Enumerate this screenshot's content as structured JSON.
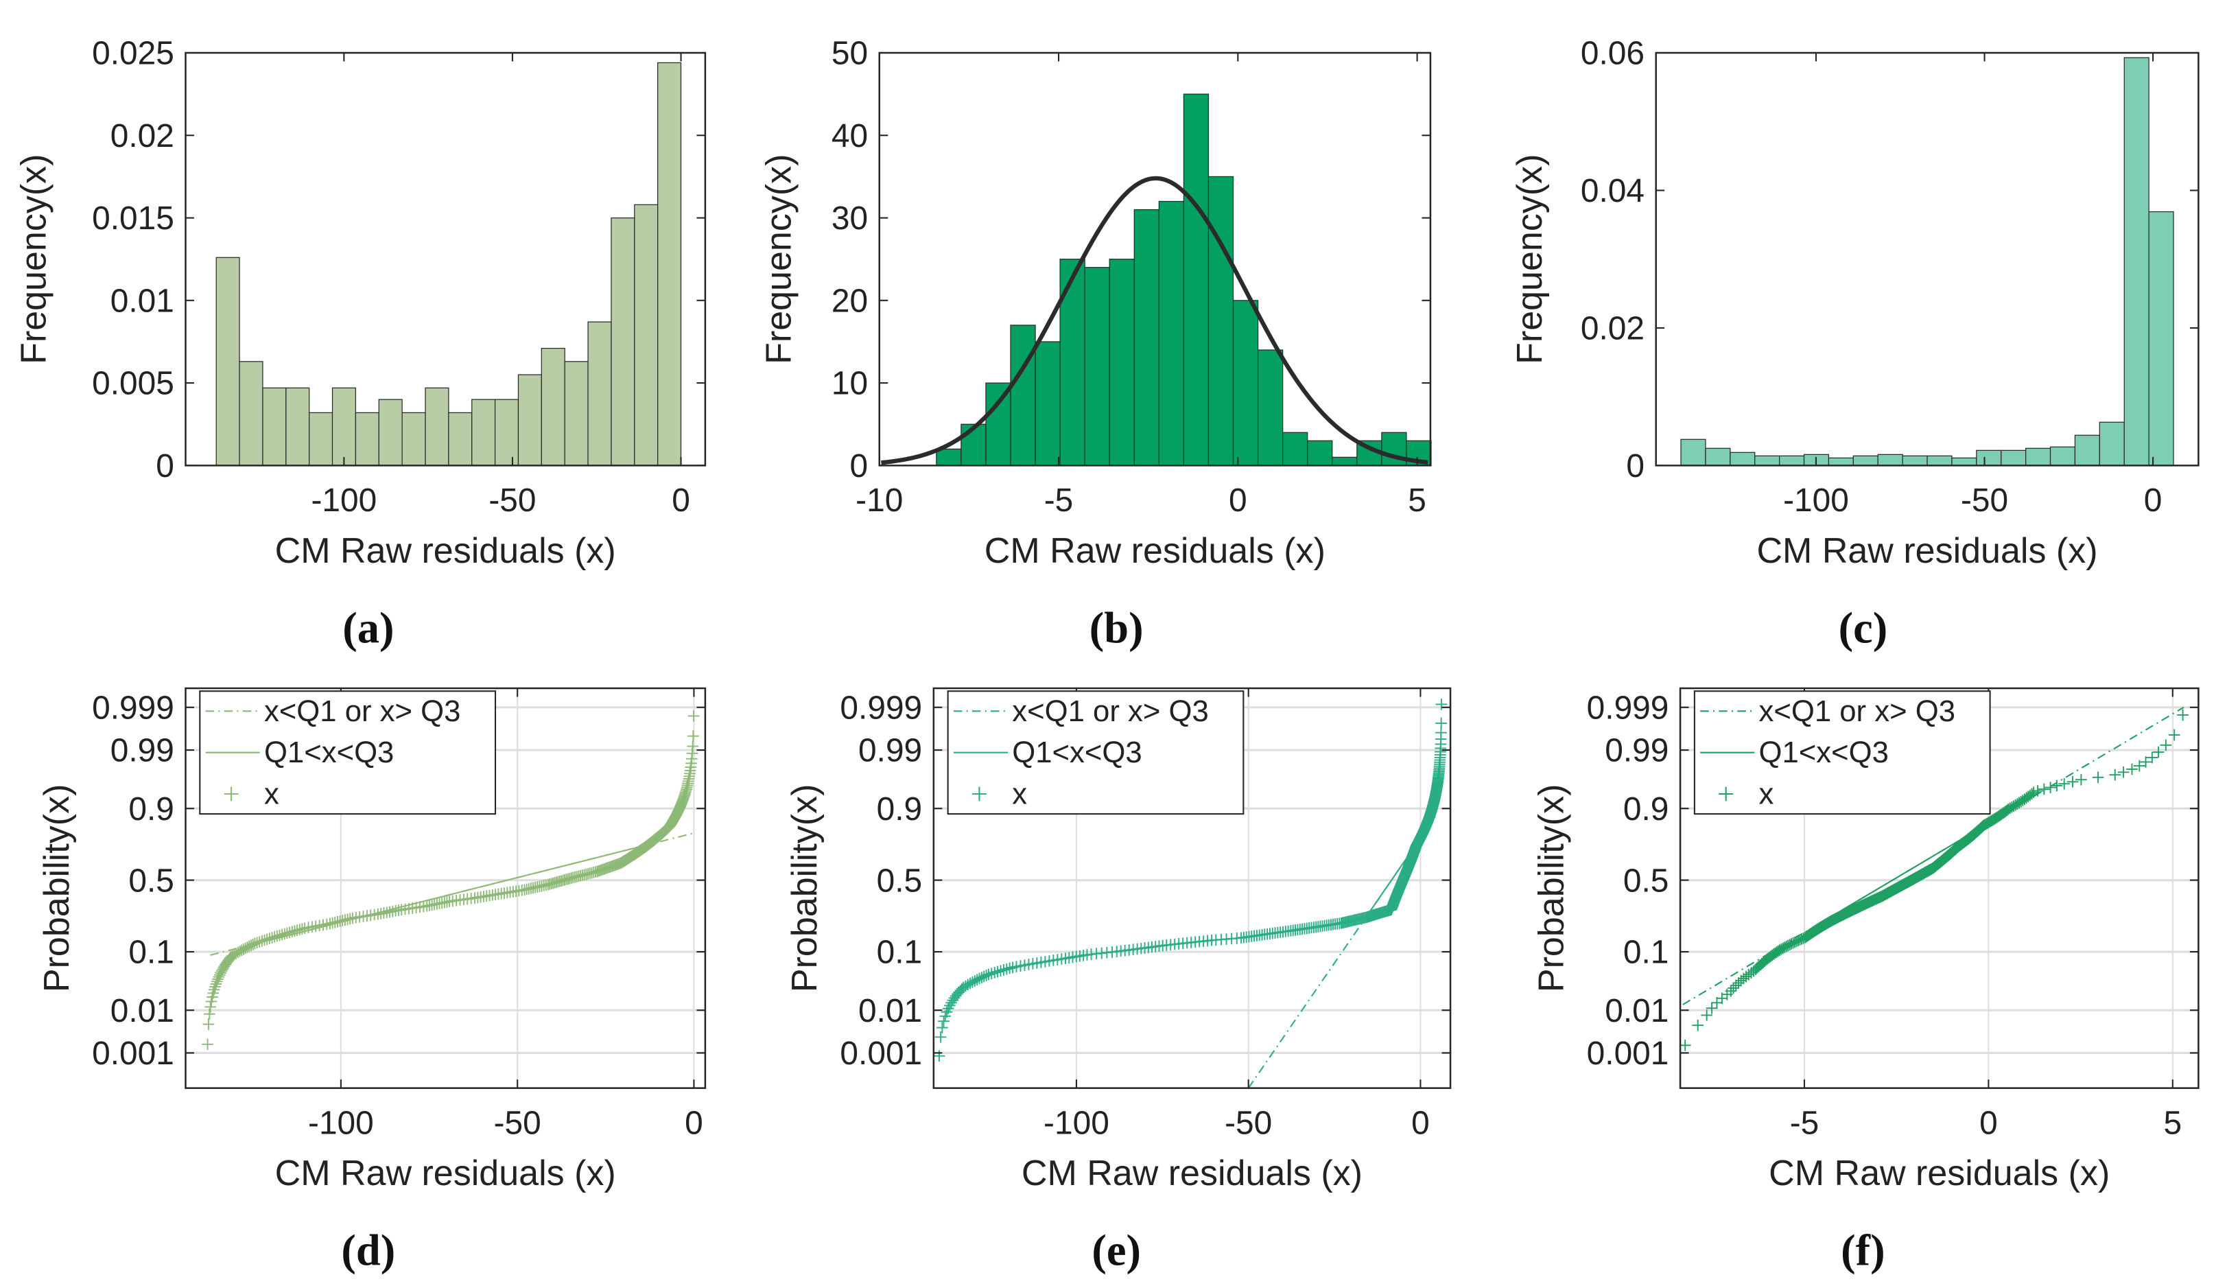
{
  "chart_data": [
    {
      "panel": "(a)",
      "panel_letter": "a",
      "type": "bar",
      "xlabel": "CM Raw residuals (x)",
      "ylabel": "Frequency(x)",
      "xlim": [
        -147,
        7.2
      ],
      "ylim": [
        0,
        0.025
      ],
      "grid": false,
      "xticks": [
        -100,
        -50,
        0
      ],
      "xtick_labels": [
        "-100",
        "-50",
        "0"
      ],
      "yticks": [
        0,
        0.005,
        0.01,
        0.015,
        0.02,
        0.025
      ],
      "ytick_labels": [
        "0",
        "0.005",
        "0.01",
        "0.015",
        "0.02",
        "0.025"
      ],
      "bin_start": -137.9,
      "bin_width": 6.895,
      "values": [
        0.0126,
        0.0063,
        0.0047,
        0.0047,
        0.0032,
        0.0047,
        0.0032,
        0.004,
        0.0032,
        0.0047,
        0.0032,
        0.004,
        0.004,
        0.0055,
        0.0071,
        0.0063,
        0.0087,
        0.015,
        0.0158,
        0.0244
      ],
      "color": "#b8cca6"
    },
    {
      "panel": "(b)",
      "panel_letter": "b",
      "type": "bar",
      "xlabel": "CM Raw residuals (x)",
      "ylabel": "Frequency(x)",
      "xlim": [
        -10,
        5.37
      ],
      "ylim": [
        0,
        50
      ],
      "grid": false,
      "xticks": [
        -10,
        -5,
        0,
        5
      ],
      "xtick_labels": [
        "-10",
        "-5",
        "0",
        "5"
      ],
      "yticks": [
        0,
        10,
        20,
        30,
        40,
        50
      ],
      "ytick_labels": [
        "0",
        "10",
        "20",
        "30",
        "40",
        "50"
      ],
      "bin_start": -8.41,
      "bin_width": 0.69,
      "values": [
        2,
        5,
        10,
        17,
        15,
        25,
        24,
        25,
        31,
        32,
        45,
        35,
        20,
        14,
        4,
        3,
        1,
        3,
        4,
        3
      ],
      "color": "#03a061",
      "fit": {
        "type": "normal",
        "mean": -2.29,
        "sigma": 2.52,
        "peak": 34.8,
        "range": [
          -9.95,
          5.3
        ],
        "color": "#2b2b2b"
      }
    },
    {
      "panel": "(c)",
      "panel_letter": "c",
      "type": "bar",
      "xlabel": "CM Raw residuals (x)",
      "ylabel": "Frequency(x)",
      "xlim": [
        -147.5,
        13.5
      ],
      "ylim": [
        0,
        0.06
      ],
      "grid": false,
      "xticks": [
        -100,
        -50,
        0
      ],
      "xtick_labels": [
        "-100",
        "-50",
        "0"
      ],
      "yticks": [
        0,
        0.02,
        0.04,
        0.06
      ],
      "ytick_labels": [
        "0",
        "0.02",
        "0.04",
        "0.06"
      ],
      "bin_start": -140.1,
      "bin_width": 7.31,
      "values": [
        0.0038,
        0.0025,
        0.0019,
        0.0014,
        0.0014,
        0.0016,
        0.0011,
        0.0014,
        0.0016,
        0.0014,
        0.0014,
        0.0011,
        0.0022,
        0.0022,
        0.0025,
        0.0027,
        0.0044,
        0.0063,
        0.0593,
        0.0369
      ],
      "color": "#7ecdb5"
    },
    {
      "panel": "(d)",
      "panel_letter": "d",
      "type": "scatter",
      "xlabel": "CM Raw residuals (x)",
      "ylabel": "Probability(x)",
      "xlim": [
        -144,
        3.2
      ],
      "ylim_probability": [
        0.0001,
        0.9997
      ],
      "grid": true,
      "xticks": [
        -100,
        -50,
        0
      ],
      "xtick_labels": [
        "-100",
        "-50",
        "0"
      ],
      "yticks": [
        0.001,
        0.01,
        0.1,
        0.5,
        0.9,
        0.99,
        0.999
      ],
      "ytick_labels": [
        "0.001",
        "0.01",
        "0.1",
        "0.5",
        "0.9",
        "0.99",
        "0.999"
      ],
      "sample_source": 0,
      "sample_count": 300,
      "ref_line": {
        "x1": -137,
        "p1": 0.09,
        "x2": 0,
        "p2": 0.8,
        "q1": -120,
        "q3": -15
      },
      "legend": [
        "x<Q1 or x> Q3",
        "Q1<x<Q3",
        "x"
      ],
      "legend_position": "top-left",
      "color": "#8db876"
    },
    {
      "panel": "(e)",
      "panel_letter": "e",
      "type": "scatter",
      "xlabel": "CM Raw residuals (x)",
      "ylabel": "Probability(x)",
      "xlim": [
        -141.5,
        8.7
      ],
      "ylim_probability": [
        0.0001,
        0.9997
      ],
      "grid": true,
      "xticks": [
        -100,
        -50,
        0
      ],
      "xtick_labels": [
        "-100",
        "-50",
        "0"
      ],
      "yticks": [
        0.001,
        0.01,
        0.1,
        0.5,
        0.9,
        0.99,
        0.999
      ],
      "ytick_labels": [
        "0.001",
        "0.01",
        "0.1",
        "0.5",
        "0.9",
        "0.99",
        "0.999"
      ],
      "sample_source": 2,
      "sample_count": 600,
      "ref_line": {
        "x1": -50,
        "p1": 0.0001,
        "x2": 5,
        "p2": 0.885,
        "q1": -15,
        "q3": -2
      },
      "legend": [
        "x<Q1 or x> Q3",
        "Q1<x<Q3",
        "x"
      ],
      "legend_position": "top-left",
      "color": "#2aad85"
    },
    {
      "panel": "(f)",
      "panel_letter": "f",
      "type": "scatter",
      "xlabel": "CM Raw residuals (x)",
      "ylabel": "Probability(x)",
      "xlim": [
        -8.37,
        5.7
      ],
      "ylim_probability": [
        0.0001,
        0.9997
      ],
      "grid": true,
      "xticks": [
        -5,
        0,
        5
      ],
      "xtick_labels": [
        "-5",
        "0",
        "5"
      ],
      "yticks": [
        0.001,
        0.01,
        0.1,
        0.5,
        0.9,
        0.99,
        0.999
      ],
      "ytick_labels": [
        "0.001",
        "0.01",
        "0.1",
        "0.5",
        "0.9",
        "0.99",
        "0.999"
      ],
      "sample_source": 1,
      "sample_count": 318,
      "ref_line": {
        "x1": -8.3,
        "p1": 0.013,
        "x2": 5.3,
        "p2": 0.999,
        "q1": -4,
        "q3": 0
      },
      "legend": [
        "x<Q1 or x> Q3",
        "Q1<x<Q3",
        "x"
      ],
      "legend_position": "top-left",
      "color": "#1ea062"
    }
  ]
}
